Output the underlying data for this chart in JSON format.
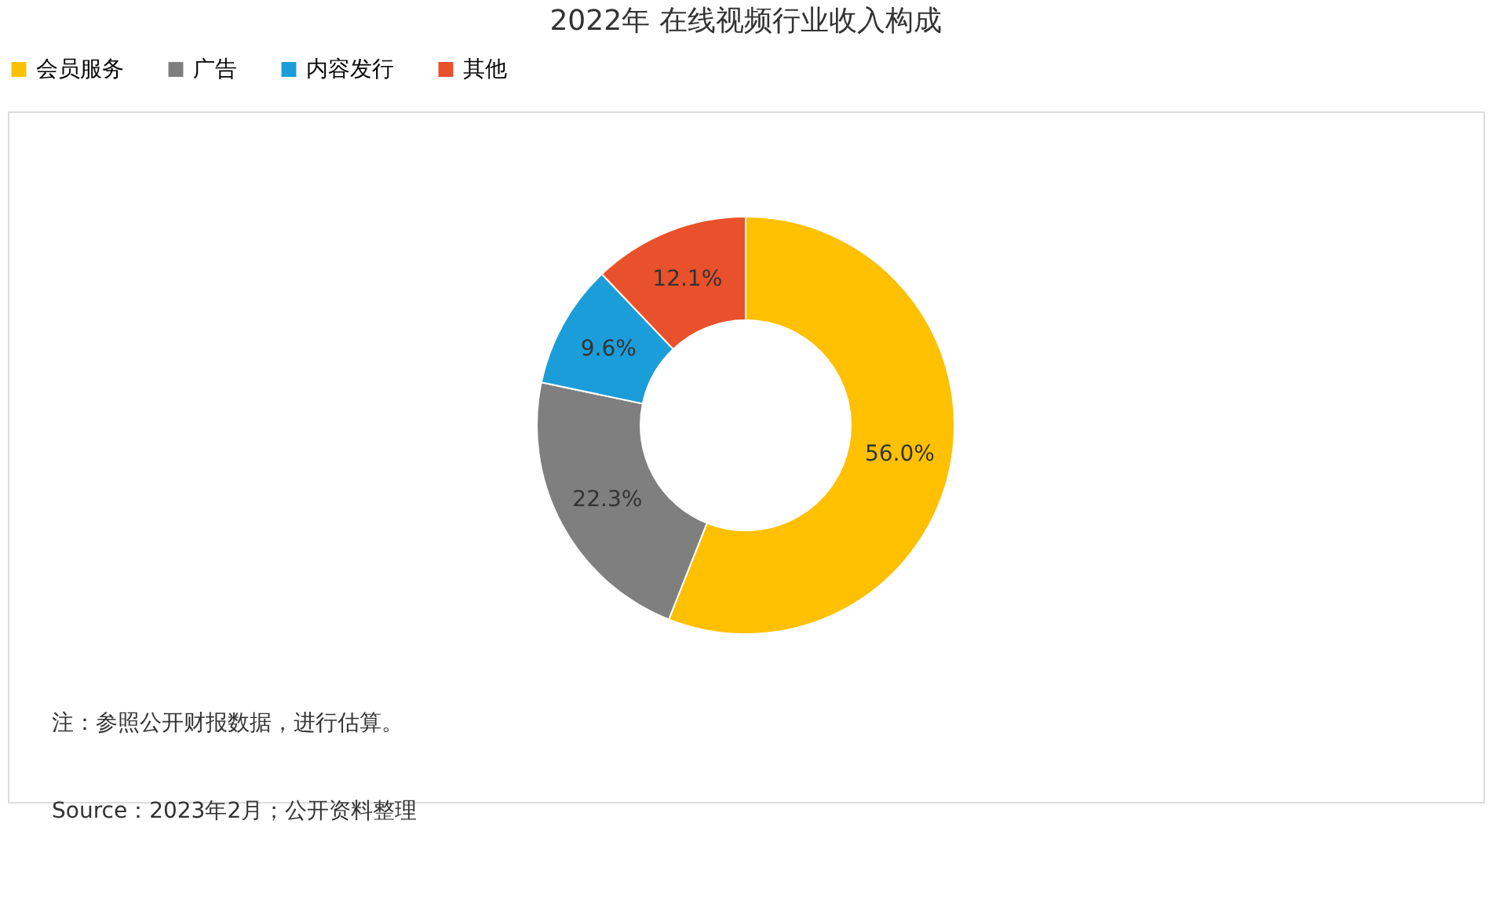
{
  "chart_data": {
    "type": "donut",
    "title": "2022年 在线视频行业收入构成",
    "categories": [
      "会员服务",
      "广告",
      "内容发行",
      "其他"
    ],
    "values": [
      56.0,
      22.3,
      9.6,
      12.1
    ],
    "value_labels": [
      "56.0%",
      "22.3%",
      "9.6%",
      "12.1%"
    ],
    "colors": [
      "#ffc000",
      "#7f7f7f",
      "#1b9dd9",
      "#e8512b"
    ],
    "legend": "top",
    "annotations": [
      "注：参照公开财报数据，进行估算。",
      "Source：2023年2月；公开资料整理"
    ]
  }
}
